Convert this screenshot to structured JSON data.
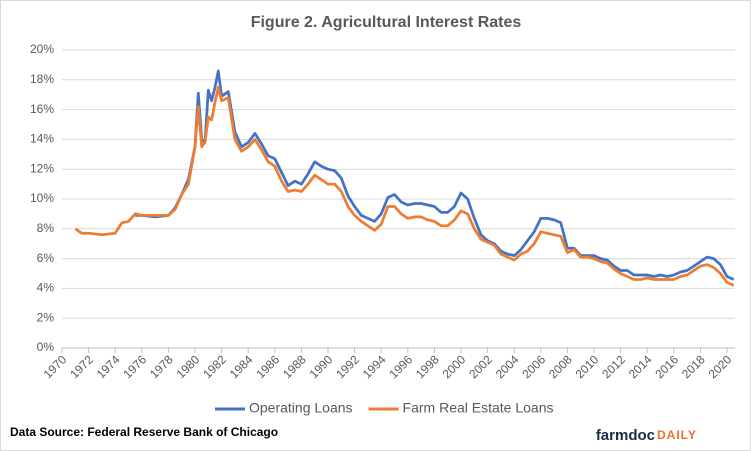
{
  "chart_data": {
    "type": "line",
    "title": "Figure 2. Agricultural  Interest Rates",
    "source": "Data Source: Federal Reserve Bank of Chicago",
    "logo": {
      "main": "farmdoc",
      "accent": "DAILY"
    },
    "x": [
      1971,
      1971.5,
      1972,
      1973,
      1974,
      1974.5,
      1975,
      1975.5,
      1976,
      1977,
      1978,
      1978.5,
      1979,
      1979.5,
      1980,
      1980.25,
      1980.5,
      1980.75,
      1981,
      1981.25,
      1981.5,
      1981.75,
      1982,
      1982.5,
      1983,
      1983.5,
      1984,
      1984.5,
      1985,
      1985.5,
      1986,
      1986.5,
      1987,
      1987.5,
      1988,
      1988.5,
      1989,
      1989.5,
      1990,
      1990.5,
      1991,
      1991.5,
      1992,
      1992.5,
      1993,
      1993.5,
      1994,
      1994.5,
      1995,
      1995.5,
      1996,
      1996.5,
      1997,
      1997.5,
      1998,
      1998.5,
      1999,
      1999.5,
      2000,
      2000.5,
      2001,
      2001.5,
      2002,
      2002.5,
      2003,
      2003.5,
      2004,
      2004.5,
      2005,
      2005.5,
      2006,
      2006.5,
      2007,
      2007.5,
      2008,
      2008.5,
      2009,
      2009.5,
      2010,
      2010.5,
      2011,
      2011.5,
      2012,
      2012.5,
      2013,
      2013.5,
      2014,
      2014.5,
      2015,
      2015.5,
      2016,
      2016.5,
      2017,
      2017.5,
      2018,
      2018.5,
      2019,
      2019.5,
      2020,
      2020.5
    ],
    "series": [
      {
        "name": "Operating Loans",
        "color": "#4472c4",
        "values": [
          null,
          null,
          null,
          null,
          null,
          null,
          null,
          8.9,
          8.9,
          8.8,
          8.9,
          9.4,
          10.3,
          11.3,
          13.5,
          17.1,
          14.0,
          13.8,
          17.3,
          16.6,
          17.5,
          18.6,
          16.9,
          17.2,
          14.5,
          13.5,
          13.8,
          14.4,
          13.7,
          12.9,
          12.7,
          11.8,
          10.9,
          11.2,
          11.0,
          11.7,
          12.5,
          12.2,
          12.0,
          11.9,
          11.4,
          10.2,
          9.5,
          8.9,
          8.7,
          8.5,
          9.0,
          10.1,
          10.3,
          9.8,
          9.6,
          9.7,
          9.7,
          9.6,
          9.5,
          9.1,
          9.1,
          9.5,
          10.4,
          10.0,
          8.7,
          7.6,
          7.2,
          7.0,
          6.5,
          6.3,
          6.2,
          6.6,
          7.2,
          7.8,
          8.7,
          8.7,
          8.6,
          8.4,
          6.7,
          6.7,
          6.2,
          6.2,
          6.2,
          6.0,
          5.9,
          5.5,
          5.2,
          5.2,
          4.9,
          4.9,
          4.9,
          4.8,
          4.9,
          4.8,
          4.9,
          5.1,
          5.2,
          5.5,
          5.8,
          6.1,
          6.0,
          5.6,
          4.8,
          4.6
        ]
      },
      {
        "name": "Farm Real Estate Loans",
        "color": "#ed7d31",
        "values": [
          8.0,
          7.7,
          7.7,
          7.6,
          7.7,
          8.4,
          8.5,
          9.0,
          8.9,
          8.9,
          8.9,
          9.3,
          10.3,
          11.0,
          13.5,
          16.2,
          13.5,
          13.8,
          15.5,
          15.3,
          16.5,
          17.5,
          16.6,
          16.8,
          14.0,
          13.2,
          13.5,
          14.0,
          13.3,
          12.5,
          12.2,
          11.2,
          10.5,
          10.6,
          10.5,
          11.0,
          11.6,
          11.3,
          11.0,
          11.0,
          10.5,
          9.5,
          8.9,
          8.5,
          8.2,
          7.9,
          8.3,
          9.5,
          9.5,
          9.0,
          8.7,
          8.8,
          8.8,
          8.6,
          8.5,
          8.2,
          8.2,
          8.6,
          9.2,
          9.0,
          8.0,
          7.3,
          7.1,
          6.9,
          6.3,
          6.1,
          5.9,
          6.3,
          6.5,
          7.0,
          7.8,
          7.7,
          7.6,
          7.5,
          6.4,
          6.6,
          6.1,
          6.1,
          6.0,
          5.8,
          5.7,
          5.3,
          5.0,
          4.8,
          4.6,
          4.6,
          4.7,
          4.6,
          4.6,
          4.6,
          4.6,
          4.8,
          4.9,
          5.2,
          5.5,
          5.6,
          5.4,
          5.0,
          4.4,
          4.2
        ]
      }
    ],
    "xlim": [
      1970,
      2020.6
    ],
    "xticks": [
      1970,
      1972,
      1974,
      1976,
      1978,
      1980,
      1982,
      1984,
      1986,
      1988,
      1990,
      1992,
      1994,
      1996,
      1998,
      2000,
      2002,
      2004,
      2006,
      2008,
      2010,
      2012,
      2014,
      2016,
      2018,
      2020
    ],
    "ylim": [
      0,
      20
    ],
    "yticks": [
      {
        "value": 0,
        "label": "0%"
      },
      {
        "value": 2,
        "label": "2%"
      },
      {
        "value": 4,
        "label": "4%"
      },
      {
        "value": 6,
        "label": "6%"
      },
      {
        "value": 8,
        "label": "8%"
      },
      {
        "value": 10,
        "label": "10%"
      },
      {
        "value": 12,
        "label": "12%"
      },
      {
        "value": 14,
        "label": "14%"
      },
      {
        "value": 16,
        "label": "16%"
      },
      {
        "value": 18,
        "label": "18%"
      },
      {
        "value": 20,
        "label": "20%"
      }
    ],
    "grid": true,
    "legend": "bottom"
  }
}
